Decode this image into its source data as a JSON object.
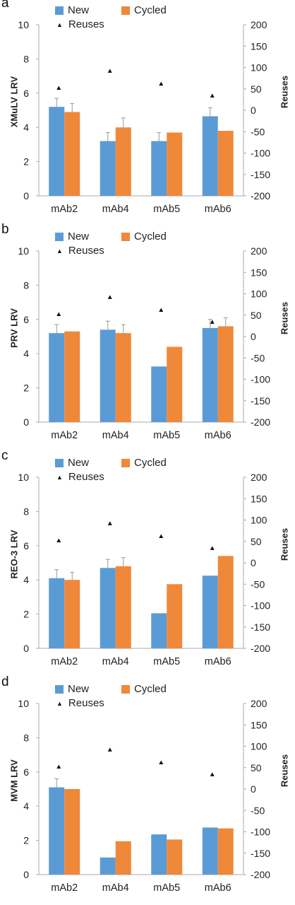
{
  "colors": {
    "new": "#5b9bd5",
    "cycled": "#f0883a",
    "axis": "#aaaaaa",
    "error_bar": "#999999",
    "reuse_marker": "#111111"
  },
  "legend": {
    "new": "New",
    "cycled": "Cycled",
    "reuses": "Reuses"
  },
  "chart_data": [
    {
      "type": "bar",
      "panel": "a",
      "ylabel": "XMuLV LRV",
      "y2label": "Reuses",
      "categories": [
        "mAb2",
        "mAb4",
        "mAb5",
        "mAb6"
      ],
      "ylim": [
        0,
        10
      ],
      "y2lim": [
        -200,
        200
      ],
      "yticks": [
        "0",
        "2",
        "4",
        "6",
        "8",
        "10"
      ],
      "y2ticks": [
        "200",
        "150",
        "100",
        "50",
        "0",
        "-50",
        "-100",
        "-150",
        "-200"
      ],
      "series": [
        {
          "name": "New",
          "values": [
            5.2,
            3.2,
            3.2,
            4.65
          ],
          "errors": [
            0.5,
            0.5,
            0.5,
            0.5
          ]
        },
        {
          "name": "Cycled",
          "values": [
            4.9,
            4.0,
            3.7,
            3.8
          ],
          "errors": [
            0.5,
            0.55,
            0,
            0
          ]
        },
        {
          "name": "Reuses",
          "type": "scatter",
          "values": [
            52,
            92,
            62,
            34
          ]
        }
      ]
    },
    {
      "type": "bar",
      "panel": "b",
      "ylabel": "PRV LRV",
      "y2label": "Reuses",
      "categories": [
        "mAb2",
        "mAb4",
        "mAb5",
        "mAb6"
      ],
      "ylim": [
        0,
        10
      ],
      "y2lim": [
        -200,
        200
      ],
      "yticks": [
        "0",
        "2",
        "4",
        "6",
        "8",
        "10"
      ],
      "y2ticks": [
        "200",
        "150",
        "100",
        "50",
        "0",
        "-50",
        "-100",
        "-150",
        "-200"
      ],
      "series": [
        {
          "name": "New",
          "values": [
            5.2,
            5.4,
            3.25,
            5.5
          ],
          "errors": [
            0.5,
            0.5,
            0,
            0.5
          ]
        },
        {
          "name": "Cycled",
          "values": [
            5.3,
            5.2,
            4.4,
            5.6
          ],
          "errors": [
            0,
            0.5,
            0,
            0.5
          ]
        },
        {
          "name": "Reuses",
          "type": "scatter",
          "values": [
            52,
            92,
            62,
            34
          ]
        }
      ]
    },
    {
      "type": "bar",
      "panel": "c",
      "ylabel": "REO-3 LRV",
      "y2label": "Reuses",
      "categories": [
        "mAb2",
        "mAb4",
        "mAb5",
        "mAb6"
      ],
      "ylim": [
        0,
        10
      ],
      "y2lim": [
        -200,
        200
      ],
      "yticks": [
        "0",
        "2",
        "4",
        "6",
        "8",
        "10"
      ],
      "y2ticks": [
        "200",
        "150",
        "100",
        "50",
        "0",
        "-50",
        "-100",
        "-150",
        "-200"
      ],
      "series": [
        {
          "name": "New",
          "values": [
            4.1,
            4.7,
            2.05,
            4.25
          ],
          "errors": [
            0.5,
            0.5,
            0,
            0
          ]
        },
        {
          "name": "Cycled",
          "values": [
            4.0,
            4.8,
            3.75,
            5.4
          ],
          "errors": [
            0.45,
            0.5,
            0,
            0
          ]
        },
        {
          "name": "Reuses",
          "type": "scatter",
          "values": [
            52,
            92,
            62,
            34
          ]
        }
      ]
    },
    {
      "type": "bar",
      "panel": "d",
      "ylabel": "MVM LRV",
      "y2label": "Reuses",
      "categories": [
        "mAb2",
        "mAb4",
        "mAb5",
        "mAb6"
      ],
      "ylim": [
        0,
        10
      ],
      "y2lim": [
        -200,
        200
      ],
      "yticks": [
        "0",
        "2",
        "4",
        "6",
        "8",
        "10"
      ],
      "y2ticks": [
        "200",
        "150",
        "100",
        "50",
        "0",
        "-50",
        "-100",
        "-150",
        "-200"
      ],
      "series": [
        {
          "name": "New",
          "values": [
            5.1,
            1.0,
            2.35,
            2.75
          ],
          "errors": [
            0.5,
            0,
            0,
            0
          ]
        },
        {
          "name": "Cycled",
          "values": [
            5.0,
            1.95,
            2.05,
            2.7
          ],
          "errors": [
            0,
            0,
            0,
            0
          ]
        },
        {
          "name": "Reuses",
          "type": "scatter",
          "values": [
            52,
            92,
            62,
            34
          ]
        }
      ]
    }
  ]
}
